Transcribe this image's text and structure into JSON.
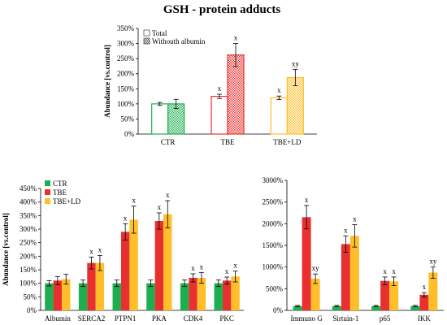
{
  "figure_title": "GSH - protein adducts",
  "colors": {
    "CTR": "#1fae4f",
    "TBE": "#e8302f",
    "TBE+LD": "#ffbe2a"
  },
  "chart_data": [
    {
      "type": "bar",
      "id": "top",
      "title": "GSH - protein adducts",
      "ylabel": "Abundance [vs.control]",
      "ylim": [
        0,
        350
      ],
      "yticks": [
        0,
        50,
        100,
        150,
        200,
        250,
        300,
        350
      ],
      "ytick_labels": [
        "0%",
        "50%",
        "100%",
        "150%",
        "200%",
        "250%",
        "300%",
        "350%"
      ],
      "categories": [
        "CTR",
        "TBE",
        "TBE+LD"
      ],
      "category_colors": [
        "#1fae4f",
        "#e8302f",
        "#ffbe2a"
      ],
      "legend": [
        "Total",
        "Withouth albumin"
      ],
      "legend_position": "top-left",
      "series": [
        {
          "name": "Total",
          "values": [
            100,
            125,
            120
          ],
          "errors": [
            5,
            7,
            6
          ],
          "labels": [
            "",
            "x",
            "x"
          ]
        },
        {
          "name": "Withouth albumin",
          "values": [
            100,
            262,
            187
          ],
          "errors": [
            15,
            38,
            27
          ],
          "labels": [
            "",
            "x",
            "xy"
          ]
        }
      ]
    },
    {
      "type": "bar",
      "id": "bottom-left",
      "ylabel": "Abundance [vs.control]",
      "ylim": [
        0,
        450
      ],
      "yticks": [
        0,
        50,
        100,
        150,
        200,
        250,
        300,
        350,
        400,
        450
      ],
      "ytick_labels": [
        "0%",
        "50%",
        "100%",
        "150%",
        "200%",
        "250%",
        "300%",
        "350%",
        "400%",
        "450%"
      ],
      "categories": [
        "Albumin",
        "SERCA2",
        "PTPN1",
        "PKA",
        "CDK4",
        "PKC"
      ],
      "legend": [
        "CTR",
        "TBE",
        "TBE+LD"
      ],
      "legend_position": "top-left",
      "series": [
        {
          "name": "CTR",
          "values": [
            100,
            100,
            100,
            100,
            100,
            100
          ],
          "errors": [
            10,
            12,
            12,
            12,
            12,
            12
          ],
          "labels": [
            "",
            "",
            "",
            "",
            "",
            ""
          ]
        },
        {
          "name": "TBE",
          "values": [
            110,
            175,
            290,
            330,
            120,
            110
          ],
          "errors": [
            15,
            22,
            30,
            30,
            15,
            13
          ],
          "labels": [
            "",
            "x",
            "x",
            "x",
            "x",
            "x"
          ]
        },
        {
          "name": "TBE+LD",
          "values": [
            115,
            175,
            335,
            355,
            120,
            125
          ],
          "errors": [
            18,
            28,
            50,
            50,
            20,
            20
          ],
          "labels": [
            "",
            "x",
            "x",
            "x",
            "x",
            "x"
          ]
        }
      ]
    },
    {
      "type": "bar",
      "id": "bottom-right",
      "ylabel": "",
      "ylim": [
        0,
        3000
      ],
      "yticks": [
        0,
        500,
        1000,
        1500,
        2000,
        2500,
        3000
      ],
      "ytick_labels": [
        "0%",
        "500%",
        "1000%",
        "1500%",
        "2000%",
        "2500%",
        "3000%"
      ],
      "categories": [
        "Immuno G",
        "Sirtuin-1",
        "p65",
        "IKK"
      ],
      "legend": [],
      "series": [
        {
          "name": "CTR",
          "values": [
            100,
            100,
            100,
            100
          ],
          "errors": [
            15,
            15,
            15,
            15
          ],
          "labels": [
            "",
            "",
            "",
            ""
          ]
        },
        {
          "name": "TBE",
          "values": [
            2150,
            1530,
            680,
            360
          ],
          "errors": [
            270,
            190,
            90,
            50
          ],
          "labels": [
            "x",
            "x",
            "x",
            "x"
          ]
        },
        {
          "name": "TBE+LD",
          "values": [
            730,
            1720,
            670,
            870
          ],
          "errors": [
            110,
            260,
            100,
            130
          ],
          "labels": [
            "xy",
            "x",
            "x",
            "xy"
          ]
        }
      ]
    }
  ]
}
